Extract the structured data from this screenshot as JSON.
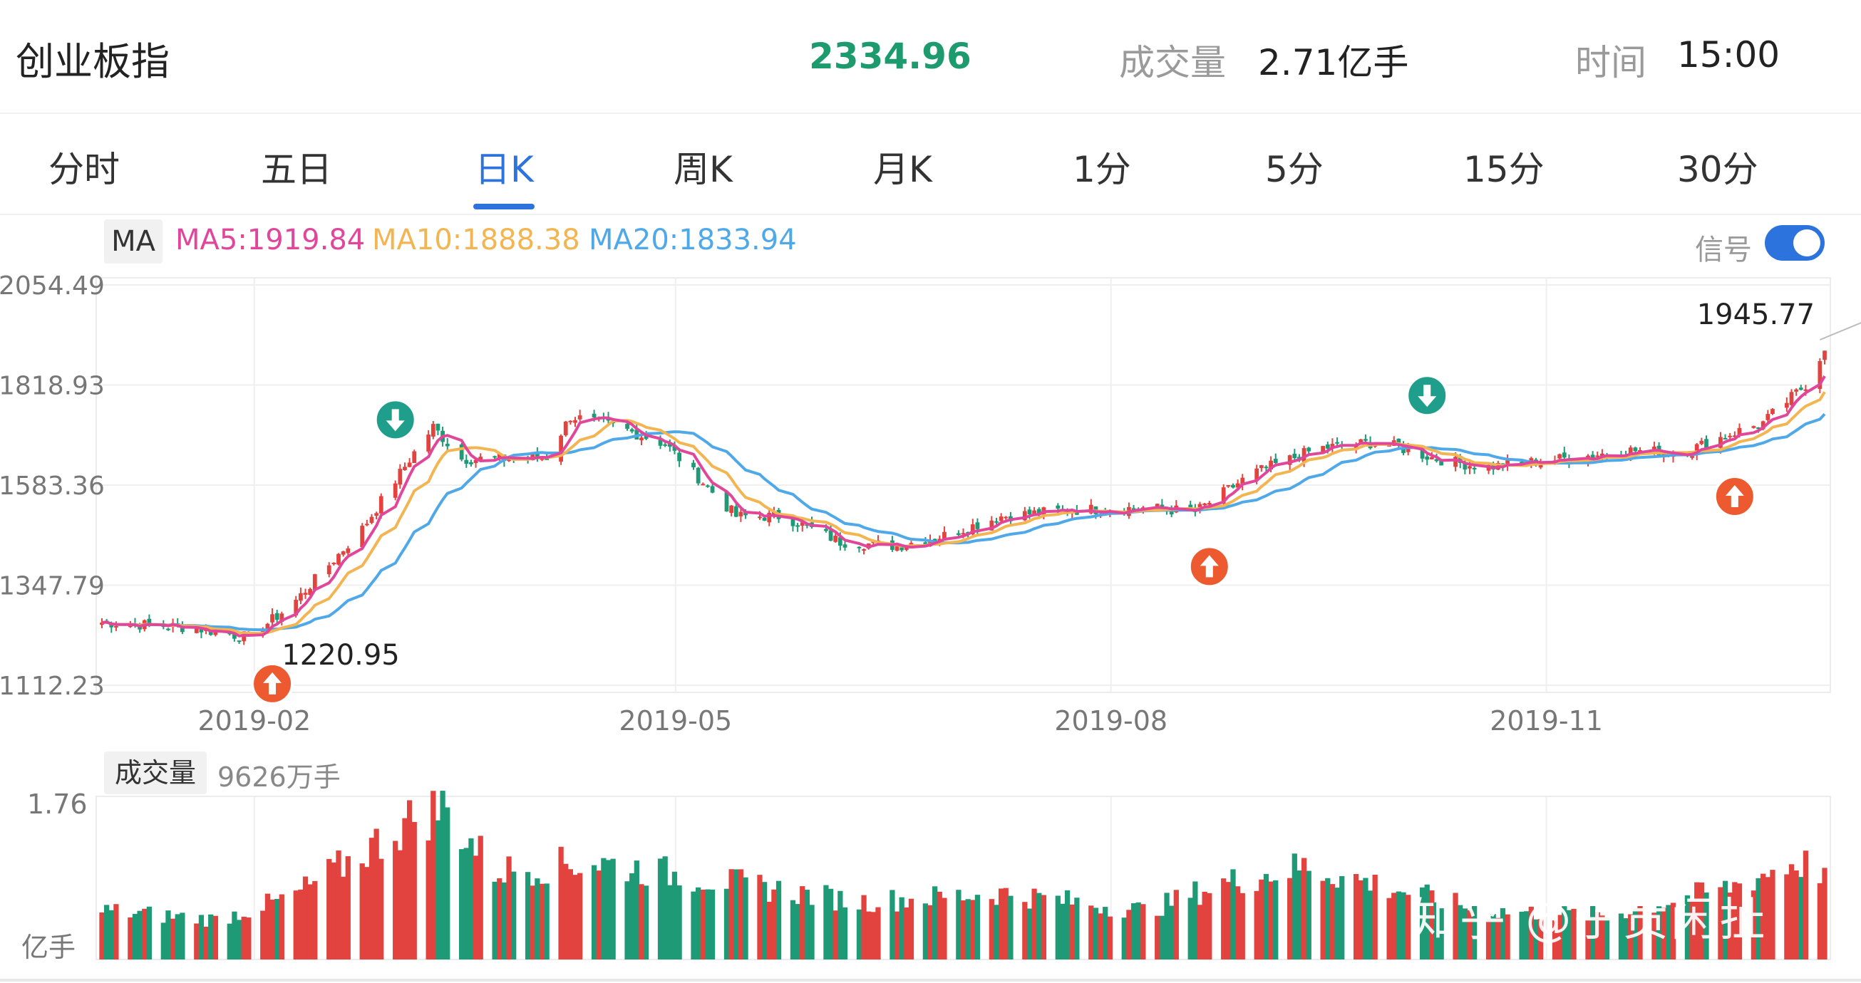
{
  "header": {
    "title": "创业板指",
    "price": "2334.96",
    "volume_label": "成交量",
    "volume_value": "2.71亿手",
    "time_label": "时间",
    "time_value": "15:00"
  },
  "tabs": [
    {
      "label": "分时",
      "active": false
    },
    {
      "label": "五日",
      "active": false
    },
    {
      "label": "日K",
      "active": true
    },
    {
      "label": "周K",
      "active": false
    },
    {
      "label": "月K",
      "active": false
    },
    {
      "label": "1分",
      "active": false
    },
    {
      "label": "5分",
      "active": false
    },
    {
      "label": "15分",
      "active": false
    },
    {
      "label": "30分",
      "active": false
    }
  ],
  "ma_legend": {
    "tag": "MA",
    "ma5": "MA5:1919.84",
    "ma10": "MA10:1888.38",
    "ma20": "MA20:1833.94"
  },
  "signal": {
    "label": "信号",
    "on": true
  },
  "volume_panel": {
    "tag": "成交量",
    "value": "9626万手"
  },
  "watermark": "知乎 @子贡闲扯",
  "colors": {
    "up": "#e2433f",
    "down": "#1e9b76",
    "ma5": "#e0479a",
    "ma10": "#f2b552",
    "ma20": "#4fa8e8",
    "accent": "#2d73de",
    "up_signal": "#ee5a2f",
    "down_signal": "#1f9e8c"
  },
  "chart_data": {
    "type": "candlestick",
    "y_ticks": [
      "2054.49",
      "1818.93",
      "1583.36",
      "1347.79",
      "1112.23"
    ],
    "y_tick_values": [
      2054.49,
      1818.93,
      1583.36,
      1347.79,
      1112.23
    ],
    "ylim": [
      1112.23,
      2054.49
    ],
    "x_labels": [
      "2019-02",
      "2019-05",
      "2019-08",
      "2019-11"
    ],
    "annotations": [
      {
        "text": "1220.95",
        "kind": "low"
      },
      {
        "text": "1945.77",
        "kind": "high"
      }
    ],
    "trend": [
      [
        "2019-01-02",
        1260
      ],
      [
        "2019-01-20",
        1248
      ],
      [
        "2019-02-01",
        1225
      ],
      [
        "2019-02-10",
        1300
      ],
      [
        "2019-02-25",
        1480
      ],
      [
        "2019-03-08",
        1660
      ],
      [
        "2019-03-12",
        1720
      ],
      [
        "2019-03-18",
        1645
      ],
      [
        "2019-03-28",
        1645
      ],
      [
        "2019-04-05",
        1650
      ],
      [
        "2019-04-10",
        1745
      ],
      [
        "2019-04-20",
        1720
      ],
      [
        "2019-04-30",
        1680
      ],
      [
        "2019-05-08",
        1590
      ],
      [
        "2019-05-15",
        1510
      ],
      [
        "2019-05-25",
        1510
      ],
      [
        "2019-06-06",
        1450
      ],
      [
        "2019-06-18",
        1440
      ],
      [
        "2019-06-28",
        1465
      ],
      [
        "2019-07-10",
        1510
      ],
      [
        "2019-07-25",
        1525
      ],
      [
        "2019-08-10",
        1530
      ],
      [
        "2019-08-20",
        1520
      ],
      [
        "2019-09-01",
        1610
      ],
      [
        "2019-09-15",
        1670
      ],
      [
        "2019-09-28",
        1685
      ],
      [
        "2019-10-10",
        1645
      ],
      [
        "2019-10-20",
        1625
      ],
      [
        "2019-11-05",
        1645
      ],
      [
        "2019-11-20",
        1665
      ],
      [
        "2019-12-01",
        1660
      ],
      [
        "2019-12-10",
        1700
      ],
      [
        "2019-12-18",
        1730
      ],
      [
        "2019-12-28",
        1830
      ],
      [
        "2019-12-31",
        1910
      ]
    ],
    "signals": [
      {
        "date": "2019-02-06",
        "type": "buy"
      },
      {
        "date": "2019-03-04",
        "type": "sell"
      },
      {
        "date": "2019-08-23",
        "type": "buy"
      },
      {
        "date": "2019-10-08",
        "type": "sell"
      },
      {
        "date": "2019-12-12",
        "type": "buy"
      }
    ],
    "volume": {
      "unit": "亿手",
      "max_label": "1.76",
      "max_value": 1.76,
      "profile": [
        [
          "2019-01-02",
          0.55
        ],
        [
          "2019-01-25",
          0.45
        ],
        [
          "2019-02-10",
          0.7
        ],
        [
          "2019-02-25",
          1.2
        ],
        [
          "2019-03-08",
          1.6
        ],
        [
          "2019-03-14",
          1.72
        ],
        [
          "2019-03-25",
          1.0
        ],
        [
          "2019-04-15",
          1.1
        ],
        [
          "2019-05-10",
          0.9
        ],
        [
          "2019-06-10",
          0.65
        ],
        [
          "2019-07-10",
          0.75
        ],
        [
          "2019-08-10",
          0.55
        ],
        [
          "2019-08-25",
          0.85
        ],
        [
          "2019-09-12",
          1.05
        ],
        [
          "2019-10-01",
          0.8
        ],
        [
          "2019-10-20",
          0.55
        ],
        [
          "2019-11-15",
          0.5
        ],
        [
          "2019-12-10",
          0.8
        ],
        [
          "2019-12-25",
          1.1
        ],
        [
          "2019-12-31",
          1.0
        ]
      ]
    }
  }
}
